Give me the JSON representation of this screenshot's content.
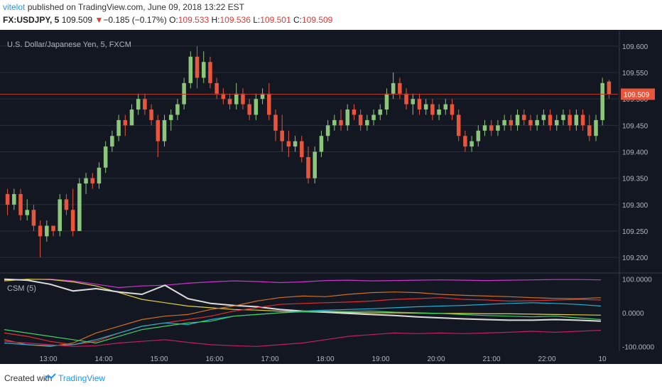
{
  "header": {
    "user": "vitelot",
    "published": " published on TradingView.com, June 09, 2018 13:22 EST",
    "symbol": "FX:USDJPY, 5",
    "last": "109.509",
    "change": "−0.185 (−0.17%)",
    "o_label": "O:",
    "o_value": "109.533",
    "h_label": "H:",
    "h_value": "109.536",
    "l_label": "L:",
    "l_value": "109.501",
    "c_label": "C:",
    "c_value": "109.509"
  },
  "footer": {
    "created": "Created with",
    "brand": "TradingView"
  },
  "colors": {
    "bg": "#131722",
    "up": "#8bc67a",
    "down": "#e8553b",
    "grid": "#2a2e39",
    "text": "#b2b5be",
    "price_line": "#b23a2e",
    "price_tag": "#e8553b"
  },
  "chart_data": [
    {
      "type": "candlestick",
      "title": "U.S. Dollar/Japanese Yen, 5, FXCM",
      "ylim": [
        109.18,
        109.62
      ],
      "y_ticks": [
        "109.600",
        "109.550",
        "109.500",
        "109.450",
        "109.400",
        "109.350",
        "109.300",
        "109.250",
        "109.200"
      ],
      "x_ticks": [
        "13:00",
        "14:00",
        "15:00",
        "16:00",
        "17:00",
        "18:00",
        "19:00",
        "20:00",
        "21:00",
        "22:00",
        "10"
      ],
      "last_price": 109.509,
      "last_price_label": "109.509",
      "ohlc": [
        [
          109.32,
          109.33,
          109.28,
          109.3
        ],
        [
          109.3,
          109.33,
          109.29,
          109.32
        ],
        [
          109.32,
          109.33,
          109.27,
          109.28
        ],
        [
          109.28,
          109.31,
          109.27,
          109.29
        ],
        [
          109.29,
          109.3,
          109.25,
          109.26
        ],
        [
          109.26,
          109.27,
          109.2,
          109.24
        ],
        [
          109.24,
          109.27,
          109.23,
          109.26
        ],
        [
          109.26,
          109.26,
          109.24,
          109.25
        ],
        [
          109.25,
          109.32,
          109.24,
          109.31
        ],
        [
          109.31,
          109.32,
          109.28,
          109.29
        ],
        [
          109.29,
          109.33,
          109.24,
          109.25
        ],
        [
          109.25,
          109.35,
          109.25,
          109.34
        ],
        [
          109.34,
          109.36,
          109.32,
          109.35
        ],
        [
          109.35,
          109.36,
          109.33,
          109.34
        ],
        [
          109.34,
          109.38,
          109.33,
          109.37
        ],
        [
          109.37,
          109.42,
          109.36,
          109.41
        ],
        [
          109.41,
          109.44,
          109.4,
          109.43
        ],
        [
          109.43,
          109.47,
          109.42,
          109.46
        ],
        [
          109.46,
          109.47,
          109.43,
          109.45
        ],
        [
          109.45,
          109.49,
          109.45,
          109.48
        ],
        [
          109.48,
          109.51,
          109.47,
          109.5
        ],
        [
          109.5,
          109.51,
          109.47,
          109.48
        ],
        [
          109.48,
          109.49,
          109.45,
          109.46
        ],
        [
          109.46,
          109.47,
          109.39,
          109.42
        ],
        [
          109.42,
          109.47,
          109.41,
          109.46
        ],
        [
          109.46,
          109.48,
          109.44,
          109.47
        ],
        [
          109.47,
          109.5,
          109.46,
          109.49
        ],
        [
          109.49,
          109.54,
          109.48,
          109.53
        ],
        [
          109.53,
          109.59,
          109.52,
          109.58
        ],
        [
          109.58,
          109.6,
          109.52,
          109.54
        ],
        [
          109.54,
          109.59,
          109.53,
          109.57
        ],
        [
          109.57,
          109.58,
          109.52,
          109.53
        ],
        [
          109.53,
          109.54,
          109.5,
          109.51
        ],
        [
          109.51,
          109.52,
          109.49,
          109.5
        ],
        [
          109.5,
          109.51,
          109.48,
          109.49
        ],
        [
          109.49,
          109.53,
          109.48,
          109.51
        ],
        [
          109.51,
          109.52,
          109.48,
          109.49
        ],
        [
          109.49,
          109.5,
          109.46,
          109.47
        ],
        [
          109.47,
          109.51,
          109.46,
          109.5
        ],
        [
          109.5,
          109.52,
          109.49,
          109.51
        ],
        [
          109.51,
          109.53,
          109.46,
          109.47
        ],
        [
          109.47,
          109.48,
          109.42,
          109.44
        ],
        [
          109.44,
          109.47,
          109.4,
          109.42
        ],
        [
          109.42,
          109.44,
          109.39,
          109.41
        ],
        [
          109.41,
          109.43,
          109.4,
          109.42
        ],
        [
          109.42,
          109.43,
          109.38,
          109.39
        ],
        [
          109.39,
          109.41,
          109.34,
          109.35
        ],
        [
          109.35,
          109.41,
          109.34,
          109.4
        ],
        [
          109.4,
          109.44,
          109.39,
          109.43
        ],
        [
          109.43,
          109.46,
          109.42,
          109.45
        ],
        [
          109.45,
          109.47,
          109.44,
          109.46
        ],
        [
          109.46,
          109.48,
          109.44,
          109.45
        ],
        [
          109.45,
          109.49,
          109.44,
          109.48
        ],
        [
          109.48,
          109.49,
          109.46,
          109.47
        ],
        [
          109.47,
          109.48,
          109.44,
          109.45
        ],
        [
          109.45,
          109.47,
          109.44,
          109.46
        ],
        [
          109.46,
          109.48,
          109.45,
          109.47
        ],
        [
          109.47,
          109.49,
          109.46,
          109.48
        ],
        [
          109.48,
          109.52,
          109.47,
          109.51
        ],
        [
          109.51,
          109.55,
          109.5,
          109.53
        ],
        [
          109.53,
          109.54,
          109.5,
          109.51
        ],
        [
          109.51,
          109.52,
          109.48,
          109.49
        ],
        [
          109.49,
          109.51,
          109.47,
          109.5
        ],
        [
          109.5,
          109.51,
          109.47,
          109.48
        ],
        [
          109.48,
          109.5,
          109.47,
          109.49
        ],
        [
          109.49,
          109.5,
          109.46,
          109.47
        ],
        [
          109.47,
          109.49,
          109.46,
          109.48
        ],
        [
          109.48,
          109.5,
          109.47,
          109.49
        ],
        [
          109.49,
          109.5,
          109.46,
          109.47
        ],
        [
          109.47,
          109.48,
          109.42,
          109.43
        ],
        [
          109.43,
          109.44,
          109.4,
          109.41
        ],
        [
          109.41,
          109.43,
          109.4,
          109.42
        ],
        [
          109.42,
          109.45,
          109.41,
          109.44
        ],
        [
          109.44,
          109.46,
          109.43,
          109.45
        ],
        [
          109.45,
          109.46,
          109.43,
          109.44
        ],
        [
          109.44,
          109.46,
          109.43,
          109.45
        ],
        [
          109.45,
          109.47,
          109.44,
          109.46
        ],
        [
          109.46,
          109.47,
          109.44,
          109.45
        ],
        [
          109.45,
          109.48,
          109.44,
          109.47
        ],
        [
          109.47,
          109.48,
          109.45,
          109.46
        ],
        [
          109.46,
          109.47,
          109.44,
          109.45
        ],
        [
          109.45,
          109.47,
          109.44,
          109.46
        ],
        [
          109.46,
          109.48,
          109.45,
          109.47
        ],
        [
          109.47,
          109.48,
          109.44,
          109.45
        ],
        [
          109.45,
          109.47,
          109.44,
          109.46
        ],
        [
          109.46,
          109.48,
          109.45,
          109.47
        ],
        [
          109.47,
          109.48,
          109.44,
          109.45
        ],
        [
          109.45,
          109.48,
          109.44,
          109.47
        ],
        [
          109.47,
          109.48,
          109.44,
          109.45
        ],
        [
          109.45,
          109.47,
          109.42,
          109.43
        ],
        [
          109.43,
          109.47,
          109.42,
          109.46
        ],
        [
          109.46,
          109.54,
          109.45,
          109.53
        ],
        [
          109.533,
          109.536,
          109.501,
          109.509
        ]
      ]
    },
    {
      "type": "line",
      "title": "CSM (5)",
      "ylim": [
        -110,
        110
      ],
      "y_ticks": [
        "100.0000",
        "0.0000",
        "-100.0000"
      ],
      "series": [
        {
          "color": "#cc33cc",
          "values": [
            98,
            99,
            100,
            95,
            85,
            75,
            80,
            82,
            88,
            92,
            95,
            93,
            90,
            92,
            96,
            97,
            95,
            96,
            97,
            98,
            97,
            96,
            97,
            98,
            99,
            99,
            98
          ]
        },
        {
          "color": "#e0d040",
          "values": [
            95,
            100,
            99,
            92,
            80,
            60,
            40,
            30,
            20,
            15,
            10,
            8,
            5,
            3,
            2,
            1,
            0,
            0,
            -1,
            -2,
            -2,
            -3,
            -3,
            -4,
            -5,
            -6,
            -7
          ]
        },
        {
          "color": "#dddddd",
          "values": [
            100,
            97,
            85,
            65,
            72,
            62,
            55,
            82,
            42,
            28,
            22,
            18,
            10,
            5,
            2,
            -2,
            -5,
            -8,
            -12,
            -15,
            -18,
            -20,
            -22,
            -22,
            -20,
            -22,
            -25
          ]
        },
        {
          "color": "#d07020",
          "values": [
            -80,
            -95,
            -100,
            -90,
            -60,
            -40,
            -20,
            -10,
            -5,
            10,
            20,
            35,
            45,
            50,
            48,
            55,
            60,
            62,
            60,
            55,
            52,
            50,
            48,
            45,
            43,
            42,
            45
          ]
        },
        {
          "color": "#e03030",
          "values": [
            -60,
            -70,
            -85,
            -95,
            -85,
            -60,
            -40,
            -30,
            -20,
            -10,
            5,
            15,
            25,
            28,
            30,
            32,
            35,
            40,
            42,
            45,
            40,
            38,
            35,
            36,
            38,
            40,
            38
          ]
        },
        {
          "color": "#20b0d0",
          "values": [
            -90,
            -95,
            -98,
            -95,
            -80,
            -60,
            -40,
            -30,
            -35,
            -20,
            -10,
            -5,
            0,
            5,
            8,
            10,
            12,
            15,
            18,
            20,
            22,
            25,
            28,
            30,
            28,
            25,
            20
          ]
        },
        {
          "color": "#40d060",
          "values": [
            -50,
            -60,
            -70,
            -80,
            -90,
            -70,
            -50,
            -40,
            -30,
            -25,
            -10,
            -5,
            0,
            3,
            5,
            4,
            5,
            2,
            0,
            -2,
            -5,
            -8,
            -10,
            -12,
            -10,
            -15,
            -20
          ]
        },
        {
          "color": "#c02060",
          "values": [
            -85,
            -90,
            -95,
            -100,
            -98,
            -90,
            -85,
            -80,
            -88,
            -95,
            -98,
            -100,
            -95,
            -90,
            -80,
            -70,
            -65,
            -60,
            -62,
            -60,
            -62,
            -60,
            -58,
            -55,
            -58,
            -55,
            -52
          ]
        }
      ]
    }
  ]
}
